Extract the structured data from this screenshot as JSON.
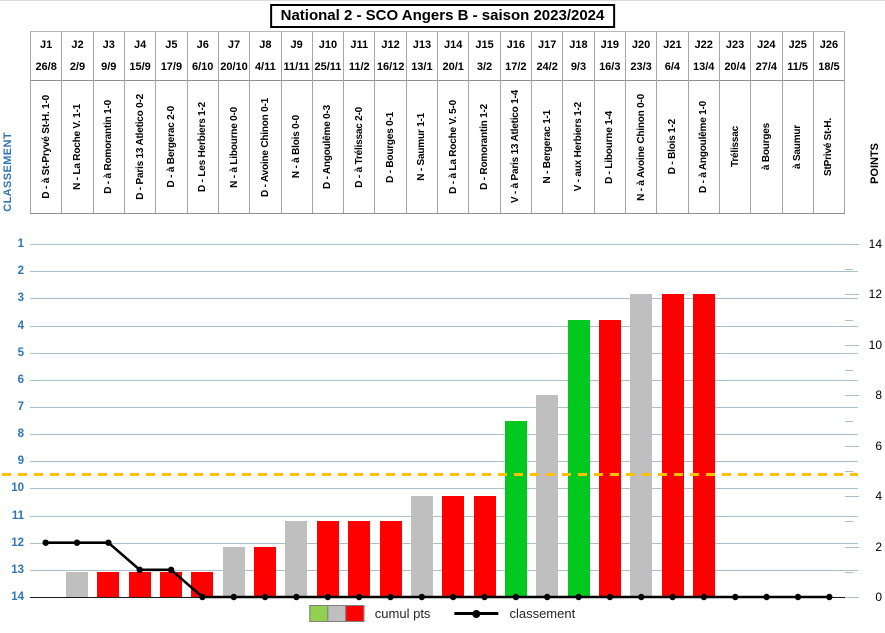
{
  "title": "National 2 - SCO Angers B - saison 2023/2024",
  "legend": {
    "cumul_label": "cumul pts",
    "classement_label": "classement",
    "swatch_colors": [
      "#92d050",
      "#bfbfbf",
      "#ff0000"
    ]
  },
  "colors": {
    "win_bar": "#00c81e",
    "draw_bar": "#bfbfbf",
    "loss_bar": "#ff0000",
    "line": "#000000",
    "threshold": "#ffc000",
    "grid": "#a9c0cd",
    "axis_blue": "#2e75b6"
  },
  "chart_data": {
    "type": "bar",
    "title": "National 2 - SCO Angers B - saison 2023/2024",
    "categories": [
      "J1",
      "J2",
      "J3",
      "J4",
      "J5",
      "J6",
      "J7",
      "J8",
      "J9",
      "J10",
      "J11",
      "J12",
      "J13",
      "J14",
      "J15",
      "J16",
      "J17",
      "J18",
      "J19",
      "J20",
      "J21",
      "J22",
      "J23",
      "J24",
      "J25",
      "J26"
    ],
    "dates": [
      "26/8",
      "2/9",
      "9/9",
      "15/9",
      "17/9",
      "6/10",
      "20/10",
      "4/11",
      "11/11",
      "25/11",
      "11/2",
      "16/12",
      "13/1",
      "20/1",
      "3/2",
      "17/2",
      "24/2",
      "9/3",
      "16/3",
      "23/3",
      "6/4",
      "13/4",
      "20/4",
      "27/4",
      "11/5",
      "18/5"
    ],
    "match_labels": [
      "D - à St-Pryvé St-H. 1-0",
      "N - La Roche V. 1-1",
      "D - à Romorantin 1-0",
      "D - Paris 13 Atletico 0-2",
      "D - à Bergerac 2-0",
      "D - Les Herbiers 1-2",
      "N - à Libourne 0-0",
      "D - Avoine Chinon 0-1",
      "N - à Blois 0-0",
      "D - Angoulême 0-3",
      "D - à Trélissac 2-0",
      "D - Bourges 0-1",
      "N - Saumur 1-1",
      "D - à La Roche V. 5-0",
      "D - Romorantin 1-2",
      "V - à Paris 13 Atletico 1-4",
      "N - Bergerac 1-1",
      "V - aux Herbiers 1-2",
      "D - Libourne 1-4",
      "N - à Avoine Chinon 0-0",
      "D - Blois 1-2",
      "D - à Angoulême 1-0",
      "Trélissac",
      "à Bourges",
      "à Saumur",
      "StPrivé St-H."
    ],
    "results": [
      "D",
      "N",
      "D",
      "D",
      "D",
      "D",
      "N",
      "D",
      "N",
      "D",
      "D",
      "D",
      "N",
      "D",
      "D",
      "V",
      "N",
      "V",
      "D",
      "N",
      "D",
      "D",
      null,
      null,
      null,
      null
    ],
    "series": [
      {
        "name": "cumul pts",
        "type": "bar",
        "axis": "points",
        "values": [
          0,
          1,
          1,
          1,
          1,
          1,
          2,
          2,
          3,
          3,
          3,
          3,
          4,
          4,
          4,
          7,
          8,
          11,
          11,
          12,
          12,
          12,
          null,
          null,
          null,
          null
        ]
      },
      {
        "name": "classement",
        "type": "line",
        "axis": "classement",
        "values": [
          12,
          12,
          12,
          13,
          13,
          14,
          14,
          14,
          14,
          14,
          14,
          14,
          14,
          14,
          14,
          14,
          14,
          14,
          14,
          14,
          14,
          14,
          14,
          14,
          14,
          14
        ]
      }
    ],
    "left_axis": {
      "label": "CLASSEMENT",
      "min": 1,
      "max": 14,
      "inverted": true,
      "grid": true
    },
    "right_axis": {
      "label": "POINTS",
      "min": 0,
      "max": 14,
      "label_step": 2,
      "tick_step": 1
    },
    "threshold_line": {
      "classement": 9.5,
      "color": "#ffc000",
      "style": "dashed"
    },
    "bar_colors": {
      "V": "#00c81e",
      "N": "#bfbfbf",
      "D": "#ff0000"
    },
    "legend_position": "bottom"
  }
}
